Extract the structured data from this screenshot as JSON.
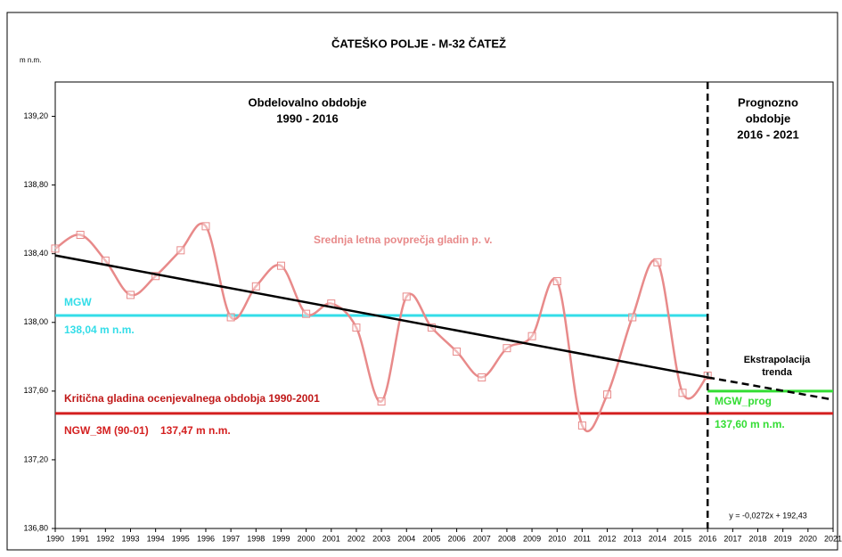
{
  "chart_data": {
    "type": "line",
    "title": "ČATEŠKO POLJE - M-32 ČATEŽ",
    "y_axis_label": "m n.m.",
    "xlim": [
      1990,
      2021
    ],
    "xticks": [
      1990,
      1991,
      1992,
      1993,
      1994,
      1995,
      1996,
      1997,
      1998,
      1999,
      2000,
      2001,
      2002,
      2003,
      2004,
      2005,
      2006,
      2007,
      2008,
      2009,
      2010,
      2011,
      2012,
      2013,
      2014,
      2015,
      2016,
      2017,
      2018,
      2019,
      2020,
      2021
    ],
    "ylim": [
      136.8,
      139.4
    ],
    "yticks": [
      {
        "value": 136.8,
        "label": "136,80"
      },
      {
        "value": 137.2,
        "label": "137,20"
      },
      {
        "value": 137.6,
        "label": "137,60"
      },
      {
        "value": 138.0,
        "label": "138,00"
      },
      {
        "value": 138.4,
        "label": "138,40"
      },
      {
        "value": 138.8,
        "label": "138,80"
      },
      {
        "value": 139.2,
        "label": "139,20"
      }
    ],
    "series": [
      {
        "name": "Srednja letna povprečja gladin p. v.",
        "color": "#e88a8a",
        "x": [
          1990,
          1991,
          1992,
          1993,
          1994,
          1995,
          1996,
          1997,
          1998,
          1999,
          2000,
          2001,
          2002,
          2003,
          2004,
          2005,
          2006,
          2007,
          2008,
          2009,
          2010,
          2011,
          2012,
          2013,
          2014,
          2015,
          2016
        ],
        "values": [
          138.43,
          138.51,
          138.36,
          138.16,
          138.27,
          138.42,
          138.56,
          138.03,
          138.21,
          138.33,
          138.05,
          138.11,
          137.97,
          137.54,
          138.15,
          137.97,
          137.83,
          137.68,
          137.85,
          137.92,
          138.24,
          137.4,
          137.58,
          138.03,
          138.35,
          137.59,
          137.69
        ]
      },
      {
        "name": "Ekstrapolacija trenda",
        "color": "#000000",
        "x": [
          1990,
          2016,
          2021
        ],
        "values": [
          138.39,
          137.68,
          137.55
        ]
      }
    ],
    "trend_equation": "y = -0,0272x + 192,43",
    "reference_lines": [
      {
        "name": "MGW",
        "label": "138,04 m n.m.",
        "value": 138.04,
        "color": "#33dde8",
        "x_range": [
          1990,
          2016
        ]
      },
      {
        "name": "NGW_3M (90-01)",
        "label": "137,47 m n.m.",
        "value": 137.47,
        "color": "#d42020",
        "x_range": [
          1990,
          2021
        ]
      },
      {
        "name": "MGW_prog",
        "label": "137,60 m n.m.",
        "value": 137.6,
        "color": "#33dd33",
        "x_range": [
          2016,
          2021
        ]
      }
    ],
    "critical_label": "Kritična gladina ocenjevalnega obdobja 1990-2001",
    "divider_x": 2016,
    "periods": [
      {
        "lines": [
          "Obdelovalno obdobje",
          "1990 - 2016"
        ]
      },
      {
        "lines": [
          "Prognozno",
          "obdobje",
          "2016 - 2021"
        ]
      }
    ],
    "extrapolation_lines": [
      "Ekstrapolacija",
      "trenda"
    ]
  }
}
